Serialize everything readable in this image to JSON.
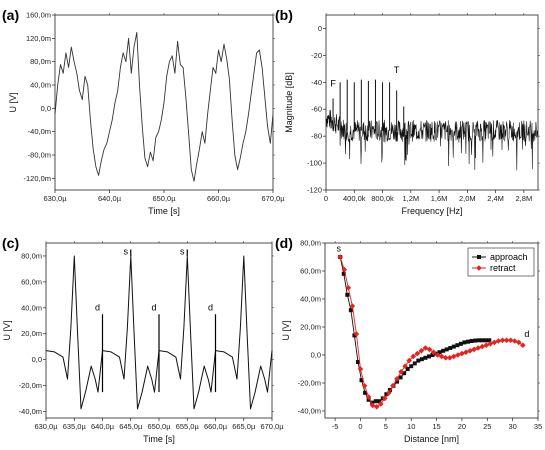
{
  "chart_data": [
    {
      "id": "a",
      "panel_label": "(a)",
      "type": "line",
      "xlabel": "Time [s]",
      "ylabel": "U [V]",
      "xlim": [
        630,
        670
      ],
      "ylim": [
        -140,
        160
      ],
      "x_tick_values": [
        630,
        640,
        650,
        660,
        670
      ],
      "x_tick_labels": [
        "630,0µ",
        "640,0µ",
        "650,0µ",
        "660,0µ",
        "670,0µ"
      ],
      "y_tick_values": [
        -120,
        -80,
        -40,
        0,
        40,
        80,
        120,
        160
      ],
      "y_tick_labels": [
        "-120,0m",
        "-80,0m",
        "-40,0m",
        "0,0",
        "40,0m",
        "80,0m",
        "120,0m",
        "160,0m"
      ],
      "series": [
        {
          "color": "#333333",
          "x": [
            630,
            630.5,
            631,
            631.5,
            632,
            632.5,
            633,
            633.5,
            634,
            634.5,
            635,
            635.5,
            636,
            636.5,
            637,
            637.5,
            638,
            638.5,
            639,
            639.5,
            640,
            640.5,
            641,
            641.5,
            642,
            642.5,
            643,
            643.5,
            644,
            644.5,
            645,
            645.5,
            646,
            646.5,
            647,
            647.5,
            648,
            648.5,
            649,
            649.5,
            650,
            650.5,
            651,
            651.5,
            652,
            652.5,
            653,
            653.5,
            654,
            654.5,
            655,
            655.5,
            656,
            656.5,
            657,
            657.5,
            658,
            658.5,
            659,
            659.5,
            660,
            660.5,
            661,
            661.5,
            662,
            662.5,
            663,
            663.5,
            664,
            664.5,
            665,
            665.5,
            666,
            666.5,
            667,
            667.5,
            668,
            668.5,
            669,
            669.5,
            670
          ],
          "y": [
            -10,
            40,
            75,
            60,
            95,
            70,
            105,
            80,
            60,
            30,
            15,
            55,
            40,
            -20,
            -70,
            -100,
            -115,
            -90,
            -70,
            -60,
            -40,
            -20,
            10,
            30,
            70,
            95,
            80,
            120,
            60,
            105,
            130,
            40,
            -30,
            -85,
            -100,
            -75,
            -90,
            -50,
            -40,
            -20,
            10,
            55,
            80,
            90,
            60,
            115,
            75,
            70,
            20,
            -40,
            -105,
            -125,
            -95,
            -70,
            -40,
            -60,
            -10,
            30,
            70,
            60,
            100,
            80,
            110,
            85,
            50,
            -20,
            -80,
            -105,
            -85,
            -60,
            -40,
            -10,
            25,
            60,
            95,
            100,
            70,
            20,
            -30,
            -60,
            -10
          ]
        }
      ]
    },
    {
      "id": "b",
      "panel_label": "(b)",
      "type": "line",
      "xlabel": "Frequency [Hz]",
      "ylabel": "Magnitude [dB]",
      "xlim": [
        0,
        3.0
      ],
      "ylim": [
        -120,
        10
      ],
      "x_tick_values": [
        0,
        0.4,
        0.8,
        1.2,
        1.6,
        2.0,
        2.4,
        2.8
      ],
      "x_tick_labels": [
        "0",
        "400,0k",
        "800,0k",
        "1,2M",
        "1,6M",
        "2,0M",
        "2,4M",
        "2,8M"
      ],
      "y_tick_values": [
        -120,
        -100,
        -80,
        -60,
        -40,
        -20,
        0
      ],
      "y_tick_labels": [
        "-120",
        "-100",
        "-80",
        "-60",
        "-40",
        "-20",
        "0"
      ],
      "spectrum": {
        "noise_floor_db": -76,
        "noise_spread_db": 8,
        "fundamental": {
          "x": 0.1,
          "y": -52
        },
        "harmonics": [
          {
            "x": 0.2,
            "y": -40
          },
          {
            "x": 0.3,
            "y": -38
          },
          {
            "x": 0.4,
            "y": -40
          },
          {
            "x": 0.5,
            "y": -38
          },
          {
            "x": 0.6,
            "y": -39
          },
          {
            "x": 0.7,
            "y": -38
          },
          {
            "x": 0.8,
            "y": -40
          },
          {
            "x": 0.9,
            "y": -40
          },
          {
            "x": 1.0,
            "y": -46
          },
          {
            "x": 1.1,
            "y": -58
          }
        ]
      },
      "annotations": [
        {
          "text": "F",
          "x": 0.1,
          "y": -43
        },
        {
          "text": "T",
          "x": 1.0,
          "y": -33
        }
      ]
    },
    {
      "id": "c",
      "panel_label": "(c)",
      "type": "line",
      "xlabel": "Time [s]",
      "ylabel": "U [V]",
      "xlim": [
        630,
        670
      ],
      "ylim": [
        -45,
        90
      ],
      "x_tick_values": [
        630,
        635,
        640,
        645,
        650,
        655,
        660,
        665,
        670
      ],
      "x_tick_labels": [
        "630,0µ",
        "635,0µ",
        "640,0µ",
        "645,0µ",
        "650,0µ",
        "655,0µ",
        "660,0µ",
        "665,0µ",
        "670,0µ"
      ],
      "y_tick_values": [
        -40,
        -20,
        0,
        20,
        40,
        60,
        80
      ],
      "y_tick_labels": [
        "-40,0m",
        "-20,0m",
        "0,0",
        "20,0m",
        "40,0m",
        "60,0m",
        "80,0m"
      ],
      "period": 10,
      "first_peak": 635,
      "series": [
        {
          "color": "#111111",
          "cycle_offsets": [
            -5,
            -3.5,
            -2,
            -1.2,
            -0.6,
            0,
            0.6,
            1.2,
            2,
            3,
            3.7,
            4.2,
            5
          ],
          "cycle_values": [
            7,
            6,
            2,
            -15,
            25,
            80,
            20,
            -38,
            -25,
            -5,
            -15,
            -25,
            7
          ]
        }
      ],
      "annotations": [
        {
          "text": "s",
          "x": 645,
          "y": 81
        },
        {
          "text": "s",
          "x": 655,
          "y": 81
        },
        {
          "text": "d",
          "x": 640,
          "y": 38
        },
        {
          "text": "d",
          "x": 650,
          "y": 38
        },
        {
          "text": "d",
          "x": 660,
          "y": 38
        }
      ],
      "markers": [
        {
          "x": 640,
          "y1": -25,
          "y2": 35
        },
        {
          "x": 645,
          "y1": 80,
          "y2": 85
        },
        {
          "x": 650,
          "y1": -25,
          "y2": 35
        },
        {
          "x": 655,
          "y1": 80,
          "y2": 85
        },
        {
          "x": 660,
          "y1": -25,
          "y2": 35
        }
      ]
    },
    {
      "id": "d",
      "panel_label": "(d)",
      "type": "line",
      "xlabel": "Distance [nm]",
      "ylabel": "U [V]",
      "xlim": [
        -7,
        35
      ],
      "ylim": [
        -45,
        80
      ],
      "x_tick_values": [
        -5,
        0,
        5,
        10,
        15,
        20,
        25,
        30,
        35
      ],
      "x_tick_labels": [
        "-5",
        "0",
        "5",
        "10",
        "15",
        "20",
        "25",
        "30",
        "35"
      ],
      "y_tick_values": [
        -40,
        -20,
        0,
        20,
        40,
        60,
        80
      ],
      "y_tick_labels": [
        "-40,0m",
        "-20,0m",
        "0,0",
        "20,0m",
        "40,0m",
        "60,0m",
        "80,0m"
      ],
      "legend": {
        "position": "top-right"
      },
      "series": [
        {
          "name": "approach",
          "color": "#111111",
          "marker": "square",
          "x": [
            -4,
            -3.3,
            -2.6,
            -1.9,
            -1.2,
            -0.5,
            0.2,
            0.9,
            1.6,
            2.3,
            3,
            3.7,
            4.4,
            5.1,
            5.8,
            6.5,
            7.2,
            7.9,
            8.6,
            9.3,
            10,
            10.7,
            11.4,
            12.1,
            12.8,
            13.5,
            14.2,
            14.9,
            15.6,
            16.3,
            17,
            17.7,
            18.4,
            19.1,
            19.8,
            20.5,
            21.2,
            21.9,
            22.6,
            23.3,
            24,
            24.7,
            25.4
          ],
          "y": [
            70,
            58,
            43,
            32,
            14,
            -5,
            -18,
            -27,
            -32,
            -34,
            -33,
            -33,
            -31,
            -28,
            -25,
            -22,
            -19,
            -16,
            -13,
            -10,
            -8,
            -6,
            -4,
            -3,
            -2,
            -1,
            0,
            1,
            2,
            3,
            4,
            5,
            6,
            7,
            8,
            9,
            9.5,
            10,
            10.3,
            10.5,
            10.5,
            10.5,
            10.5
          ]
        },
        {
          "name": "retract",
          "color": "#e8231f",
          "marker": "diamond",
          "x": [
            -4,
            -3.2,
            -2.4,
            -1.6,
            -0.8,
            0,
            0.8,
            1.6,
            2.4,
            3.2,
            4,
            4.8,
            5.6,
            6.4,
            7.2,
            8,
            8.8,
            9.6,
            10.4,
            11.2,
            12,
            12.8,
            13.6,
            14.4,
            15.2,
            16,
            16.8,
            17.6,
            18.4,
            19.2,
            20,
            20.8,
            21.6,
            22.4,
            23.2,
            24,
            24.8,
            25.6,
            26.4,
            27.2,
            28,
            28.8,
            29.6,
            30.4,
            31.2,
            32
          ],
          "y": [
            70,
            61,
            48,
            35,
            15,
            -10,
            -22,
            -30,
            -36,
            -37,
            -35,
            -31,
            -27,
            -22,
            -17,
            -12,
            -8,
            -4,
            -1,
            1,
            3,
            5,
            4,
            2,
            0,
            -1,
            -2,
            -2,
            -1,
            0,
            1,
            2,
            3,
            4,
            5,
            6,
            7,
            8,
            9,
            10,
            10.5,
            10.5,
            10.5,
            10,
            9,
            7
          ]
        }
      ],
      "annotations": [
        {
          "text": "s",
          "x": -4.3,
          "y": 74
        },
        {
          "text": "d",
          "x": 32.8,
          "y": 13
        }
      ]
    }
  ]
}
